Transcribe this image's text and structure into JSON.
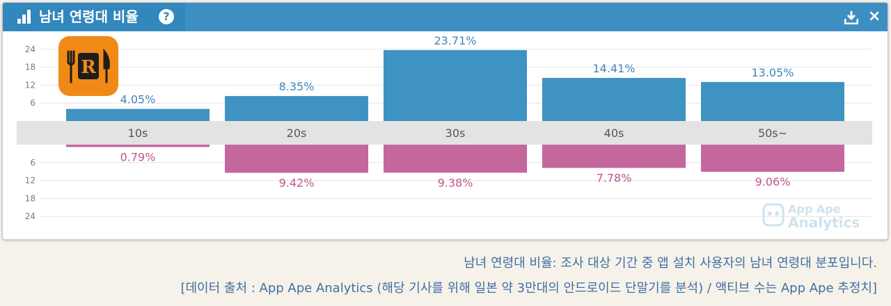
{
  "header": {
    "title": "남녀 연령대 비율",
    "help_label": "?",
    "close_label": "×",
    "icons": {
      "title": "bar-chart-icon",
      "help": "question-circle-icon",
      "download": "download-icon",
      "close": "close-icon"
    }
  },
  "colors": {
    "header": "#3d8fc3",
    "male": "#3f93c2",
    "female": "#c4679d",
    "band": "#e4e3e3",
    "logo": "#f08a16"
  },
  "watermark": {
    "line1": "App Ape",
    "line2": "Analytics"
  },
  "chart_data": {
    "type": "bar",
    "categories": [
      "10s",
      "20s",
      "30s",
      "40s",
      "50s~"
    ],
    "series": [
      {
        "values": [
          4.05,
          8.35,
          23.71,
          14.41,
          13.05
        ],
        "labels": [
          "4.05%",
          "8.35%",
          "23.71%",
          "14.41%",
          "13.05%"
        ],
        "direction": "up"
      },
      {
        "values": [
          0.79,
          9.42,
          9.38,
          7.78,
          9.06
        ],
        "labels": [
          "0.79%",
          "9.42%",
          "9.38%",
          "7.78%",
          "9.06%"
        ],
        "direction": "down"
      }
    ],
    "upper_ticks": [
      "24",
      "18",
      "12",
      "6"
    ],
    "lower_ticks": [
      "6",
      "12",
      "18",
      "24"
    ],
    "ylim": [
      0,
      24
    ],
    "grid": true
  },
  "footer": {
    "line1": "남녀 연령대 비율: 조사 대상 기간 중 앱 설치 사용자의 남녀 연령대 분포입니다.",
    "line2": "[데이터 출처 : App Ape Analytics (해당 기사를 위해 일본 약 3만대의 안드로이드 단말기를 분석) / 액티브 수는 App Ape 추정치]"
  }
}
